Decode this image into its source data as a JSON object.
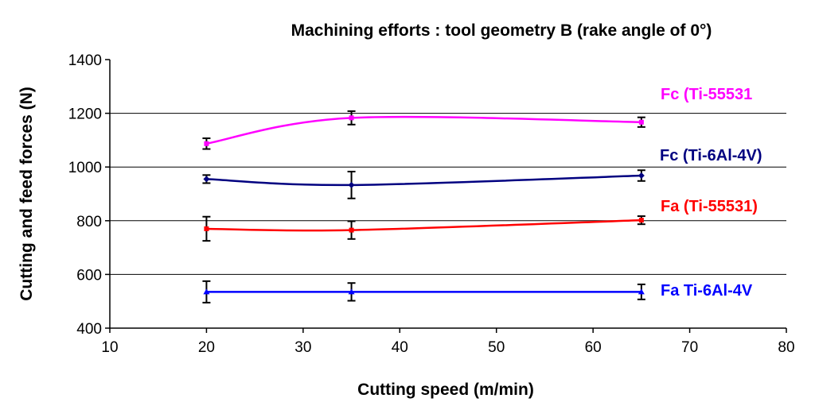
{
  "chart_data": {
    "type": "line",
    "title": "Machining efforts : tool geometry B (rake angle of 0°)",
    "xlabel": "Cutting speed (m/min)",
    "ylabel": "Cutting and feed forces (N)",
    "xlim": [
      10,
      80
    ],
    "ylim": [
      400,
      1400
    ],
    "xticks": [
      "10",
      "20",
      "30",
      "40",
      "50",
      "60",
      "70",
      "80"
    ],
    "yticks": [
      "400",
      "600",
      "800",
      "1000",
      "1200",
      "1400"
    ],
    "grid": "horizontal",
    "legend": "inline labels at right",
    "series": [
      {
        "name": "Fc (Ti-55531",
        "color": "#FF00FF",
        "marker": "square",
        "x": [
          20,
          35,
          65
        ],
        "y": [
          1087,
          1183,
          1167
        ],
        "err": [
          20,
          25,
          18
        ]
      },
      {
        "name": "Fc (Ti-6Al-4V)",
        "color": "#000080",
        "marker": "diamond",
        "x": [
          20,
          35,
          65
        ],
        "y": [
          955,
          933,
          968
        ],
        "err": [
          15,
          50,
          20
        ]
      },
      {
        "name": "Fa (Ti-55531)",
        "color": "#FF0000",
        "marker": "square",
        "x": [
          20,
          35,
          65
        ],
        "y": [
          770,
          765,
          802
        ],
        "err": [
          45,
          33,
          15
        ]
      },
      {
        "name": "Fa Ti-6Al-4V",
        "color": "#0000FF",
        "marker": "triangle",
        "x": [
          20,
          35,
          65
        ],
        "y": [
          535,
          535,
          535
        ],
        "err": [
          40,
          33,
          28
        ]
      }
    ]
  }
}
